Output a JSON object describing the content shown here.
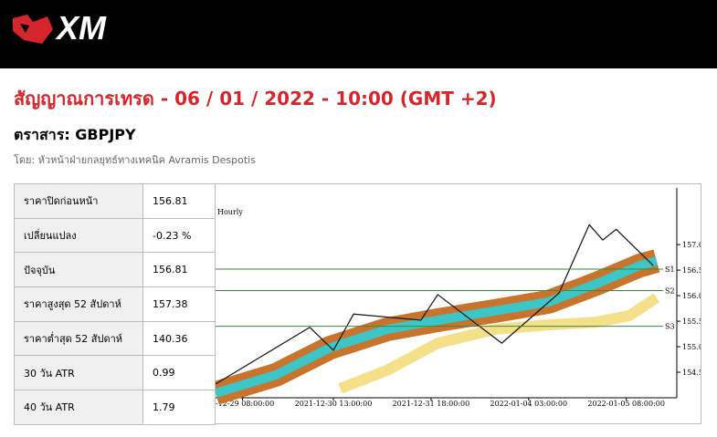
{
  "header": {
    "logo": "XM"
  },
  "title": "สัญญาณการเทรด - 06 / 01 / 2022 - 10:00 (GMT +2)",
  "instrument": "ตราสาร: GBPJPY",
  "author": "โดย: หัวหน้าฝ่ายกลยุทธ์ทางเทคนิค Avramis Despotis",
  "table": {
    "rows": [
      [
        "ราคาปิดก่อนหน้า",
        "156.81"
      ],
      [
        "เปลี่ยนแปลง",
        "-0.23 %"
      ],
      [
        "ปัจจุบัน",
        "156.81"
      ],
      [
        "ราคาสูงสุด 52 สัปดาห์",
        "157.38"
      ],
      [
        "ราคาต่ำสุด 52 สัปดาห์",
        "140.36"
      ],
      [
        "30 วัน ATR",
        "0.99"
      ],
      [
        "40 วัน ATR",
        "1.79"
      ]
    ]
  },
  "chart_data": {
    "type": "line",
    "title": "Hourly",
    "xlim": [
      0,
      137
    ],
    "ylim": [
      154.0,
      158.11
    ],
    "xticks": [
      {
        "value": 8,
        "label": "1-12-29 08:00:00"
      },
      {
        "value": 35,
        "label": "2021-12-30 13:00:00"
      },
      {
        "value": 64,
        "label": "2021-12-31 18:00:00"
      },
      {
        "value": 93,
        "label": "2022-01-04 03:00:00"
      },
      {
        "value": 122,
        "label": "2022-01-05 08:00:00"
      }
    ],
    "yticks": [
      {
        "value": 154.5,
        "label": "154.50"
      },
      {
        "value": 155,
        "label": "155.00"
      },
      {
        "value": 155.5,
        "label": "155.50"
      },
      {
        "value": 156,
        "label": "156.00"
      },
      {
        "value": 156.5,
        "label": "156.50"
      },
      {
        "value": 157,
        "label": "157.00"
      }
    ],
    "levels": [
      {
        "name": "S1",
        "value": 156.52,
        "color": "#3a8a3a"
      },
      {
        "name": "S2",
        "value": 156.1,
        "color": "#3a8a3a"
      },
      {
        "name": "S3",
        "value": 155.4,
        "color": "#3a8a3a"
      }
    ],
    "series": [
      {
        "color": "#c8742c",
        "width": 26,
        "x": [
          0,
          18,
          34,
          51,
          66,
          83,
          99,
          113,
          126,
          131
        ],
        "values": [
          154.09,
          154.45,
          154.98,
          155.34,
          155.52,
          155.7,
          155.88,
          156.23,
          156.59,
          156.68
        ]
      },
      {
        "color": "#3cc6c8",
        "width": 10,
        "x": [
          0,
          18,
          34,
          51,
          66,
          83,
          99,
          113,
          126,
          131
        ],
        "values": [
          154.09,
          154.45,
          154.98,
          155.34,
          155.52,
          155.7,
          155.88,
          156.23,
          156.59,
          156.68
        ]
      },
      {
        "color": "#f5e08a",
        "width": 12,
        "x": [
          37,
          51,
          66,
          83,
          99,
          113,
          123,
          131
        ],
        "values": [
          154.18,
          154.54,
          155.07,
          155.34,
          155.43,
          155.48,
          155.61,
          155.96
        ]
      },
      {
        "color": "#111111",
        "width": 1.2,
        "x": [
          0,
          28,
          35,
          41,
          61,
          66,
          85,
          102,
          111,
          115,
          119,
          130
        ],
        "values": [
          154.27,
          155.38,
          154.93,
          155.64,
          155.52,
          156.02,
          155.07,
          156.05,
          157.39,
          157.09,
          157.3,
          156.59
        ]
      }
    ]
  }
}
